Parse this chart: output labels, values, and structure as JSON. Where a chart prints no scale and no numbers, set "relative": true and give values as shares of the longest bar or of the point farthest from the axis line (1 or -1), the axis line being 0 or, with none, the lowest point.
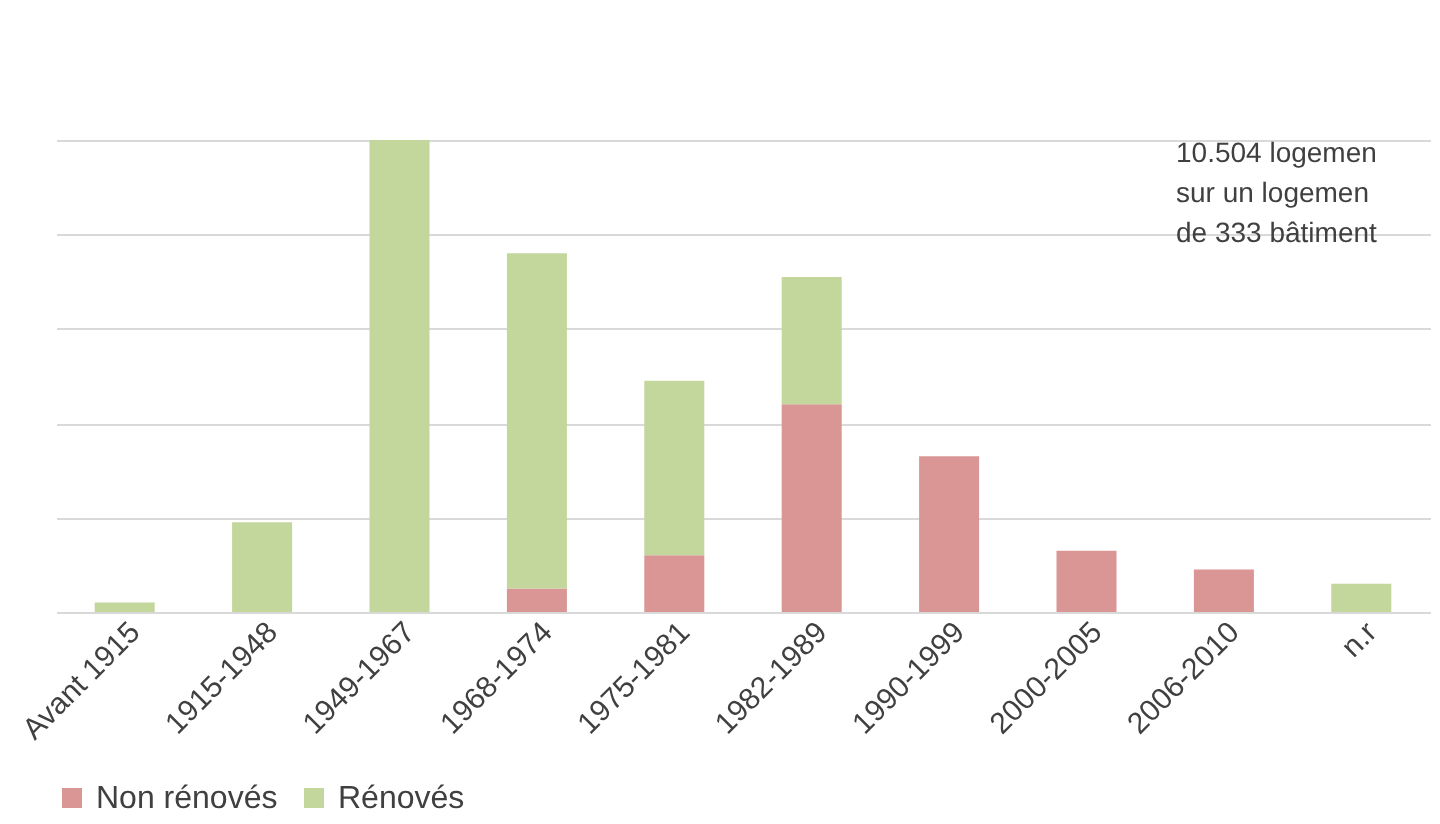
{
  "chart_data": {
    "type": "bar",
    "stacked": true,
    "relative": true,
    "grid": "y",
    "legend": "bottom",
    "categories": [
      "Avant 1915",
      "1915-1948",
      "1949-1967",
      "1968-1974",
      "1975-1981",
      "1982-1989",
      "1990-1999",
      "2000-2005",
      "2006-2010",
      "n.r"
    ],
    "series": [
      {
        "name": "Non rénovés",
        "color": "#d99694",
        "values": [
          0,
          0,
          0,
          0.05,
          0.12,
          0.44,
          0.33,
          0.13,
          0.09,
          0
        ]
      },
      {
        "name": "Rénovés",
        "color": "#c3d69b",
        "values": [
          0.02,
          0.19,
          1.0,
          0.71,
          0.37,
          0.27,
          0,
          0,
          0,
          0.06
        ]
      }
    ],
    "annotations": [
      "10.504 logemen\nsur un logemen\nde 333 bâtiment"
    ]
  }
}
